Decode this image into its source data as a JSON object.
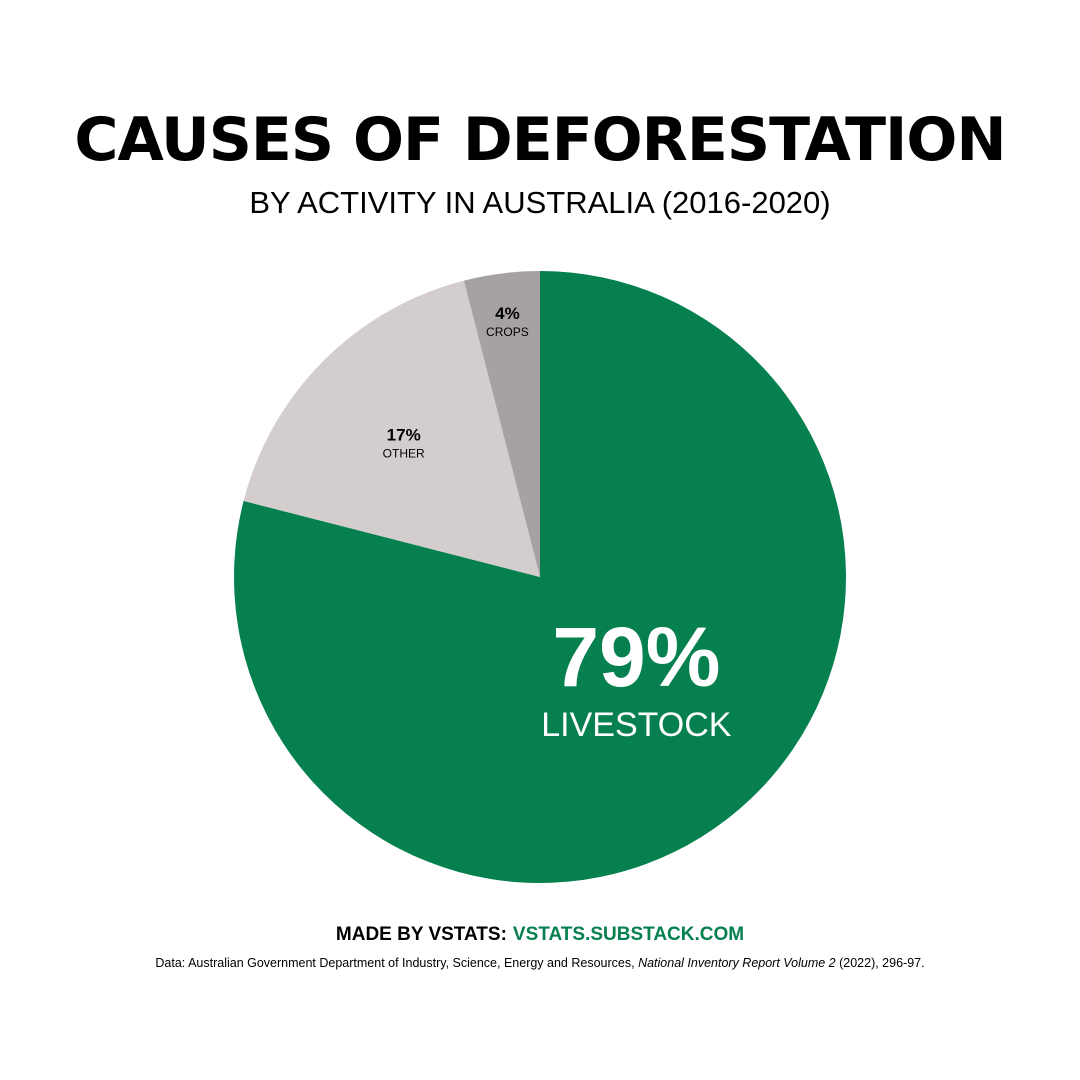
{
  "header": {
    "title": "CAUSES OF DEFORESTATION",
    "subtitle": "BY ACTIVITY IN AUSTRALIA (2016-2020)"
  },
  "chart_data": {
    "type": "pie",
    "title": "CAUSES OF DEFORESTATION",
    "subtitle": "BY ACTIVITY IN AUSTRALIA (2016-2020)",
    "slices": [
      {
        "label": "LIVESTOCK",
        "value": 79,
        "value_label": "79%",
        "color": "#06804f",
        "label_color": "#ffffff"
      },
      {
        "label": "OTHER",
        "value": 17,
        "value_label": "17%",
        "color": "#d3cdce",
        "label_color": "#000000"
      },
      {
        "label": "CROPS",
        "value": 4,
        "value_label": "4%",
        "color": "#a6a1a2",
        "label_color": "#000000"
      }
    ],
    "legend": "none",
    "start_angle": "12 o'clock",
    "direction": "clockwise"
  },
  "footer": {
    "credit_prefix": "MADE BY VSTATS:",
    "credit_link": "VSTATS.SUBSTACK.COM",
    "credit_link_color": "#06804f",
    "source_prefix": "Data:  Australian Government Department of Industry, Science, Energy and Resources, ",
    "source_title": "National Inventory Report Volume 2",
    "source_suffix": " (2022), 296-97."
  }
}
